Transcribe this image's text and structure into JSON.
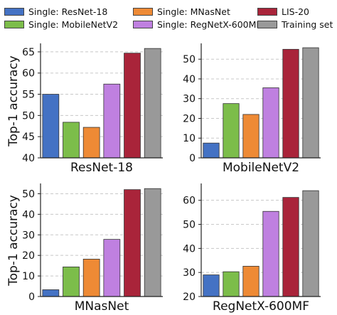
{
  "legend": [
    {
      "label": "Single: ResNet-18",
      "color": "#4472c4"
    },
    {
      "label": "Single: MNasNet",
      "color": "#ee8a35"
    },
    {
      "label": "LIS-20",
      "color": "#a9243a"
    },
    {
      "label": "Single: MobileNetV2",
      "color": "#7cbd4a"
    },
    {
      "label": "Single: RegNetX-600MF",
      "color": "#bf80e0"
    },
    {
      "label": "Training set",
      "color": "#999999"
    }
  ],
  "ylabel": "Top-1 accuracy",
  "chart_data": [
    {
      "type": "bar",
      "title": "ResNet-18",
      "ylabel": "Top-1 accuracy",
      "ylim": [
        40,
        67
      ],
      "yticks": [
        40,
        45,
        50,
        55,
        60,
        65
      ],
      "grid": "horizontal dashed",
      "series": [
        {
          "name": "Single: ResNet-18",
          "values": [
            55.0
          ]
        },
        {
          "name": "Single: MobileNetV2",
          "values": [
            48.4
          ]
        },
        {
          "name": "Single: MNasNet",
          "values": [
            47.2
          ]
        },
        {
          "name": "Single: RegNetX-600MF",
          "values": [
            57.4
          ]
        },
        {
          "name": "LIS-20",
          "values": [
            64.7
          ]
        },
        {
          "name": "Training set",
          "values": [
            65.8
          ]
        }
      ]
    },
    {
      "type": "bar",
      "title": "MobileNetV2",
      "ylabel": "",
      "ylim": [
        0,
        58
      ],
      "yticks": [
        0,
        10,
        20,
        30,
        40,
        50
      ],
      "grid": "horizontal dashed",
      "series": [
        {
          "name": "Single: ResNet-18",
          "values": [
            7.5
          ]
        },
        {
          "name": "Single: MobileNetV2",
          "values": [
            27.5
          ]
        },
        {
          "name": "Single: MNasNet",
          "values": [
            22.0
          ]
        },
        {
          "name": "Single: RegNetX-600MF",
          "values": [
            35.5
          ]
        },
        {
          "name": "LIS-20",
          "values": [
            55.0
          ]
        },
        {
          "name": "Training set",
          "values": [
            55.8
          ]
        }
      ]
    },
    {
      "type": "bar",
      "title": "MNasNet",
      "ylabel": "Top-1 accuracy",
      "ylim": [
        0,
        55
      ],
      "yticks": [
        0,
        10,
        20,
        30,
        40,
        50
      ],
      "grid": "horizontal dashed",
      "series": [
        {
          "name": "Single: ResNet-18",
          "values": [
            3.3
          ]
        },
        {
          "name": "Single: MobileNetV2",
          "values": [
            14.4
          ]
        },
        {
          "name": "Single: MNasNet",
          "values": [
            18.2
          ]
        },
        {
          "name": "Single: RegNetX-600MF",
          "values": [
            27.8
          ]
        },
        {
          "name": "LIS-20",
          "values": [
            52.0
          ]
        },
        {
          "name": "Training set",
          "values": [
            52.5
          ]
        }
      ]
    },
    {
      "type": "bar",
      "title": "RegNetX-600MF",
      "ylabel": "",
      "ylim": [
        20,
        67
      ],
      "yticks": [
        20,
        30,
        40,
        50,
        60
      ],
      "grid": "horizontal dashed",
      "series": [
        {
          "name": "Single: ResNet-18",
          "values": [
            29.0
          ]
        },
        {
          "name": "Single: MobileNetV2",
          "values": [
            30.3
          ]
        },
        {
          "name": "Single: MNasNet",
          "values": [
            32.6
          ]
        },
        {
          "name": "Single: RegNetX-600MF",
          "values": [
            55.4
          ]
        },
        {
          "name": "LIS-20",
          "values": [
            61.2
          ]
        },
        {
          "name": "Training set",
          "values": [
            64.0
          ]
        }
      ]
    }
  ]
}
